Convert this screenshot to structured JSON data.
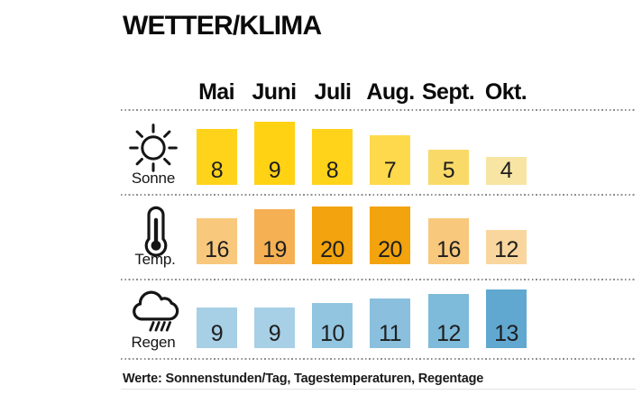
{
  "title": "WETTER/KLIMA",
  "months": [
    "Mai",
    "Juni",
    "Juli",
    "Aug.",
    "Sept.",
    "Okt."
  ],
  "rows": [
    {
      "id": "sonne",
      "label": "Sonne",
      "icon": "sun-icon",
      "values": [
        8,
        9,
        8,
        7,
        5,
        4
      ],
      "colors": [
        "#FFD31A",
        "#FFD214",
        "#FFD31A",
        "#FED94B",
        "#F9DA69",
        "#F8E5A3"
      ]
    },
    {
      "id": "temp",
      "label": "Temp.",
      "icon": "thermometer-icon",
      "values": [
        16,
        19,
        20,
        20,
        16,
        12
      ],
      "colors": [
        "#F8C87D",
        "#F5B053",
        "#F2A30D",
        "#F2A30D",
        "#F8C87D",
        "#F9D69E"
      ]
    },
    {
      "id": "regen",
      "label": "Regen",
      "icon": "rain-cloud-icon",
      "values": [
        9,
        9,
        10,
        11,
        12,
        13
      ],
      "colors": [
        "#A7CFE5",
        "#A7CFE5",
        "#92C5E0",
        "#8AC0DD",
        "#7EBAD9",
        "#61A8D0"
      ]
    }
  ],
  "footer": "Werte: Sonnenstunden/Tag, Tagestemperaturen, Regentage",
  "chart_data": {
    "type": "bar",
    "title": "WETTER/KLIMA",
    "categories": [
      "Mai",
      "Juni",
      "Juli",
      "Aug.",
      "Sept.",
      "Okt."
    ],
    "series": [
      {
        "name": "Sonne",
        "values": [
          8,
          9,
          8,
          7,
          5,
          4
        ]
      },
      {
        "name": "Temp.",
        "values": [
          16,
          19,
          20,
          20,
          16,
          12
        ]
      },
      {
        "name": "Regen",
        "values": [
          9,
          9,
          10,
          11,
          12,
          13
        ]
      }
    ],
    "value_labels": true,
    "grid": false,
    "legend_position": "left-row-icons",
    "note": "Werte: Sonnenstunden/Tag, Tagestemperaturen, Regentage",
    "layout": "three stacked bar rows separated by dotted lines, value printed inside each bar"
  }
}
